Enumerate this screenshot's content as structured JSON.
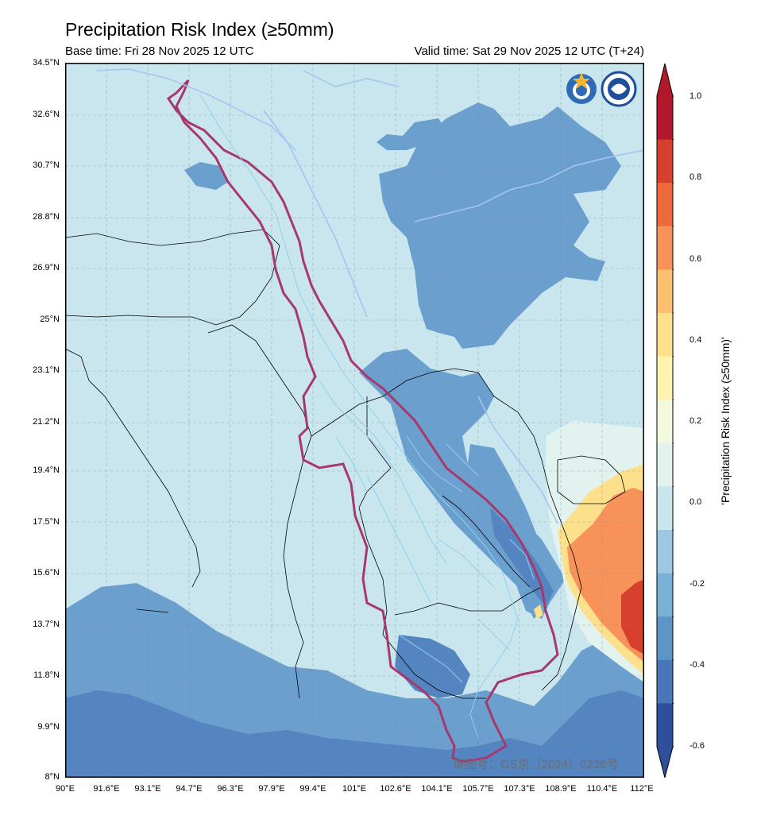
{
  "title": "Precipitation Risk Index (≥50mm)",
  "base_time": "Base time: Fri 28 Nov 2025 12 UTC",
  "valid_time": "Valid time: Sat 29 Nov 2025 12 UTC (T+24)",
  "lat_labels": [
    "34.5°N",
    "32.6°N",
    "30.7°N",
    "28.8°N",
    "26.9°N",
    "25°N",
    "23.1°N",
    "21.2°N",
    "19.4°N",
    "17.5°N",
    "15.6°N",
    "13.7°N",
    "11.8°N",
    "9.9°N",
    "8°N"
  ],
  "lon_labels": [
    "90°E",
    "91.6°E",
    "93.1°E",
    "94.7°E",
    "96.3°E",
    "97.9°E",
    "99.4°E",
    "101°E",
    "102.6°E",
    "104.1°E",
    "105.7°E",
    "107.3°E",
    "108.9°E",
    "110.4°E",
    "112°E"
  ],
  "colorbar": {
    "title": "'Precipitation Risk Index (≥50mm)'",
    "tick_labels": [
      "1.0",
      "0.8",
      "0.6",
      "0.4",
      "0.2",
      "0.0",
      "-0.2",
      "-0.4",
      "-0.6"
    ],
    "colors": [
      "#b2182b",
      "#d6402d",
      "#ef6a3a",
      "#f7935a",
      "#fbbf6f",
      "#fde08b",
      "#fff3b0",
      "#f3f9dc",
      "#e2f2ee",
      "#c9e6ee",
      "#9dc8e1",
      "#78b0d6",
      "#5c95c8",
      "#4777b8",
      "#2e4f9c"
    ]
  },
  "legend_colors": {
    "land_base": "#c9e6ee",
    "risk_low": "#6b9fcd",
    "risk_lower": "#5485c1",
    "risk_neutral": "#e2f2ee",
    "risk_mid": "#fde08b",
    "risk_high": "#f7935a",
    "risk_highest": "#d6402d",
    "basin_boundary": "#a8386b",
    "rivers": "#8fd0f0"
  },
  "logos": [
    "wmo-logo",
    "cma-logo"
  ],
  "watermark": "审图号：GS京（2024）0236号"
}
